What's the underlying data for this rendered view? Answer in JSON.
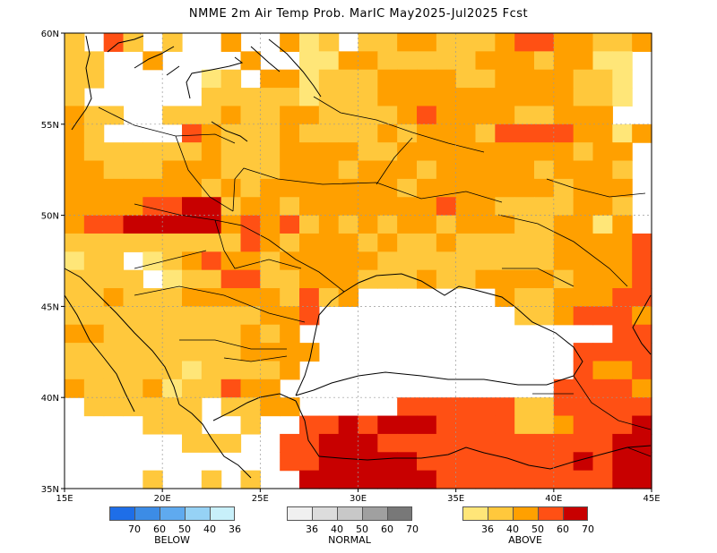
{
  "title": "NMME 2m Air Temp Prob. MarIC  May2025-Jul2025 Fcst",
  "map": {
    "region": "Eastern Europe / Black Sea",
    "lon_range": [
      15,
      45
    ],
    "lat_range": [
      35,
      60
    ],
    "lon_ticks": [
      "15E",
      "20E",
      "25E",
      "30E",
      "35E",
      "40E",
      "45E"
    ],
    "lat_ticks": [
      "35N",
      "40N",
      "45N",
      "50N",
      "55N",
      "60N"
    ],
    "grid": true
  },
  "legend": {
    "below": {
      "label": "BELOW",
      "ticks": [
        "70",
        "60",
        "50",
        "40",
        "36"
      ],
      "colors": [
        "#1e6ee8",
        "#3c8ce6",
        "#5faaef",
        "#96d2f5",
        "#c8f0fa"
      ]
    },
    "normal": {
      "label": "NORMAL",
      "ticks": [
        "36",
        "40",
        "50",
        "60",
        "70"
      ],
      "colors": [
        "#f0f0f0",
        "#dcdcdc",
        "#c8c8c8",
        "#a0a0a0",
        "#787878"
      ]
    },
    "above": {
      "label": "ABOVE",
      "ticks": [
        "36",
        "40",
        "50",
        "60",
        "70"
      ],
      "colors": [
        "#ffe678",
        "#ffc83c",
        "#ffa000",
        "#ff5014",
        "#c80000"
      ]
    }
  },
  "categories": {
    "a40": "#ffe678",
    "a50": "#ffc83c",
    "a60": "#ffa000",
    "a70": "#ff5014",
    "a80": "#c80000",
    "none": "#ffffff"
  }
}
